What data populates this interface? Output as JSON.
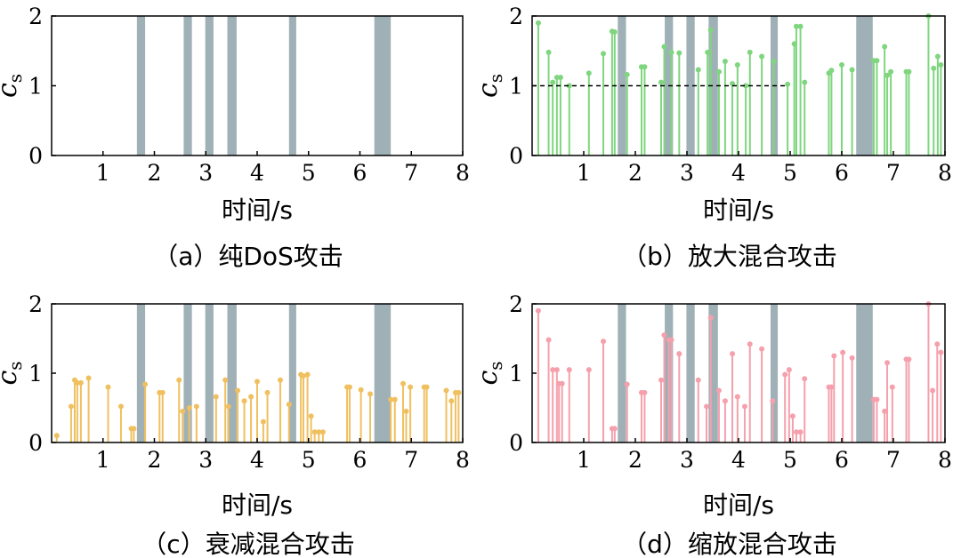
{
  "chart_data": [
    {
      "type": "bar",
      "caption": "（a）纯DoS攻击",
      "xlabel": "时间/s",
      "ylabel": "c",
      "ylabel_sub": "s",
      "xlim": [
        0,
        8
      ],
      "ylim": [
        0,
        2
      ],
      "xticks": [
        1,
        2,
        3,
        4,
        5,
        6,
        7,
        8
      ],
      "yticks": [
        0,
        1,
        2
      ],
      "attack_intervals": [
        [
          1.66,
          1.82
        ],
        [
          2.57,
          2.73
        ],
        [
          2.99,
          3.15
        ],
        [
          3.42,
          3.6
        ],
        [
          4.62,
          4.76
        ],
        [
          6.28,
          6.6
        ]
      ],
      "attack_color": "#9fb1b7",
      "stem_color": null,
      "stems": [],
      "threshold": null
    },
    {
      "type": "bar",
      "caption": "（b）放大混合攻击",
      "xlabel": "时间/s",
      "ylabel": "c",
      "ylabel_sub": "s",
      "xlim": [
        0,
        8
      ],
      "ylim": [
        0,
        2
      ],
      "xticks": [
        1,
        2,
        3,
        4,
        5,
        6,
        7,
        8
      ],
      "yticks": [
        0,
        1,
        2
      ],
      "attack_intervals": [
        [
          1.66,
          1.82
        ],
        [
          2.57,
          2.73
        ],
        [
          2.99,
          3.15
        ],
        [
          3.42,
          3.6
        ],
        [
          4.62,
          4.76
        ],
        [
          6.28,
          6.6
        ]
      ],
      "attack_color": "#9fb1b7",
      "stem_color": "#7fd67f",
      "threshold": {
        "y": 1.0,
        "x_end": 4.93
      },
      "stems": [
        [
          0.12,
          1.9
        ],
        [
          0.32,
          1.48
        ],
        [
          0.4,
          1.05
        ],
        [
          0.48,
          1.12
        ],
        [
          0.55,
          1.12
        ],
        [
          0.72,
          1.0
        ],
        [
          1.1,
          1.18
        ],
        [
          1.38,
          1.46
        ],
        [
          1.55,
          1.78
        ],
        [
          1.6,
          1.77
        ],
        [
          1.84,
          1.16
        ],
        [
          2.12,
          1.27
        ],
        [
          2.18,
          1.27
        ],
        [
          2.5,
          1.05
        ],
        [
          2.56,
          1.56
        ],
        [
          2.7,
          1.48
        ],
        [
          2.85,
          1.47
        ],
        [
          3.22,
          1.23
        ],
        [
          3.4,
          1.48
        ],
        [
          3.46,
          1.8
        ],
        [
          3.62,
          1.2
        ],
        [
          3.74,
          1.35
        ],
        [
          3.88,
          1.03
        ],
        [
          3.98,
          1.3
        ],
        [
          4.14,
          1.0
        ],
        [
          4.22,
          1.48
        ],
        [
          4.45,
          1.42
        ],
        [
          4.68,
          1.35
        ],
        [
          4.95,
          1.02
        ],
        [
          5.08,
          1.6
        ],
        [
          5.12,
          1.85
        ],
        [
          5.2,
          1.85
        ],
        [
          5.28,
          1.05
        ],
        [
          5.75,
          1.18
        ],
        [
          5.8,
          1.22
        ],
        [
          6.0,
          1.3
        ],
        [
          6.2,
          1.23
        ],
        [
          6.62,
          1.36
        ],
        [
          6.68,
          1.36
        ],
        [
          6.83,
          1.56
        ],
        [
          6.88,
          1.15
        ],
        [
          6.95,
          1.2
        ],
        [
          7.25,
          1.2
        ],
        [
          7.3,
          1.2
        ],
        [
          7.68,
          2.0
        ],
        [
          7.78,
          1.25
        ],
        [
          7.86,
          1.42
        ],
        [
          7.92,
          1.3
        ]
      ]
    },
    {
      "type": "bar",
      "caption": "（c）衰减混合攻击",
      "xlabel": "时间/s",
      "ylabel": "c",
      "ylabel_sub": "s",
      "xlim": [
        0,
        8
      ],
      "ylim": [
        0,
        2
      ],
      "xticks": [
        1,
        2,
        3,
        4,
        5,
        6,
        7,
        8
      ],
      "yticks": [
        0,
        1,
        2
      ],
      "attack_intervals": [
        [
          1.66,
          1.82
        ],
        [
          2.57,
          2.73
        ],
        [
          2.99,
          3.15
        ],
        [
          3.42,
          3.6
        ],
        [
          4.62,
          4.76
        ],
        [
          6.28,
          6.6
        ]
      ],
      "attack_color": "#9fb1b7",
      "stem_color": "#f0c060",
      "threshold": null,
      "stems": [
        [
          0.1,
          0.1
        ],
        [
          0.38,
          0.52
        ],
        [
          0.45,
          0.9
        ],
        [
          0.5,
          0.86
        ],
        [
          0.57,
          0.86
        ],
        [
          0.72,
          0.93
        ],
        [
          1.1,
          0.8
        ],
        [
          1.35,
          0.52
        ],
        [
          1.55,
          0.2
        ],
        [
          1.6,
          0.2
        ],
        [
          1.82,
          0.84
        ],
        [
          2.1,
          0.72
        ],
        [
          2.16,
          0.72
        ],
        [
          2.48,
          0.9
        ],
        [
          2.55,
          0.45
        ],
        [
          2.68,
          0.5
        ],
        [
          2.82,
          0.52
        ],
        [
          3.2,
          0.66
        ],
        [
          3.38,
          0.9
        ],
        [
          3.44,
          0.52
        ],
        [
          3.62,
          0.75
        ],
        [
          3.75,
          0.6
        ],
        [
          3.88,
          0.66
        ],
        [
          4.0,
          0.88
        ],
        [
          4.12,
          0.3
        ],
        [
          4.2,
          0.72
        ],
        [
          4.45,
          0.9
        ],
        [
          4.62,
          0.55
        ],
        [
          4.85,
          0.98
        ],
        [
          4.9,
          0.96
        ],
        [
          4.98,
          0.98
        ],
        [
          5.05,
          0.38
        ],
        [
          5.12,
          0.15
        ],
        [
          5.2,
          0.15
        ],
        [
          5.28,
          0.15
        ],
        [
          5.75,
          0.8
        ],
        [
          5.8,
          0.8
        ],
        [
          6.02,
          0.76
        ],
        [
          6.2,
          0.7
        ],
        [
          6.6,
          0.62
        ],
        [
          6.68,
          0.62
        ],
        [
          6.84,
          0.85
        ],
        [
          6.9,
          0.45
        ],
        [
          6.98,
          0.8
        ],
        [
          7.25,
          0.8
        ],
        [
          7.3,
          0.8
        ],
        [
          7.68,
          0.75
        ],
        [
          7.78,
          0.6
        ],
        [
          7.86,
          0.72
        ],
        [
          7.92,
          0.72
        ]
      ]
    },
    {
      "type": "bar",
      "caption": "（d）缩放混合攻击",
      "xlabel": "时间/s",
      "ylabel": "c",
      "ylabel_sub": "s",
      "xlim": [
        0,
        8
      ],
      "ylim": [
        0,
        2
      ],
      "xticks": [
        1,
        2,
        3,
        4,
        5,
        6,
        7,
        8
      ],
      "yticks": [
        0,
        1,
        2
      ],
      "attack_intervals": [
        [
          1.66,
          1.82
        ],
        [
          2.57,
          2.73
        ],
        [
          2.99,
          3.15
        ],
        [
          3.42,
          3.6
        ],
        [
          4.62,
          4.76
        ],
        [
          6.28,
          6.6
        ]
      ],
      "attack_color": "#9fb1b7",
      "stem_color": "#f5a0ac",
      "threshold": null,
      "stems": [
        [
          0.12,
          1.9
        ],
        [
          0.32,
          1.48
        ],
        [
          0.4,
          1.05
        ],
        [
          0.48,
          1.05
        ],
        [
          0.52,
          0.85
        ],
        [
          0.58,
          0.85
        ],
        [
          0.72,
          1.05
        ],
        [
          1.1,
          1.05
        ],
        [
          1.38,
          1.46
        ],
        [
          1.55,
          0.2
        ],
        [
          1.6,
          0.2
        ],
        [
          1.84,
          0.84
        ],
        [
          2.12,
          0.72
        ],
        [
          2.18,
          0.72
        ],
        [
          2.5,
          0.9
        ],
        [
          2.56,
          1.55
        ],
        [
          2.65,
          1.48
        ],
        [
          2.7,
          1.48
        ],
        [
          2.85,
          1.28
        ],
        [
          3.22,
          0.9
        ],
        [
          3.38,
          0.52
        ],
        [
          3.46,
          1.8
        ],
        [
          3.62,
          0.75
        ],
        [
          3.74,
          0.6
        ],
        [
          3.88,
          1.28
        ],
        [
          3.98,
          0.66
        ],
        [
          4.12,
          0.52
        ],
        [
          4.22,
          1.42
        ],
        [
          4.45,
          1.35
        ],
        [
          4.66,
          0.6
        ],
        [
          4.9,
          0.98
        ],
        [
          4.98,
          1.05
        ],
        [
          5.05,
          0.38
        ],
        [
          5.12,
          0.15
        ],
        [
          5.2,
          0.15
        ],
        [
          5.28,
          0.92
        ],
        [
          5.75,
          0.8
        ],
        [
          5.8,
          0.8
        ],
        [
          5.85,
          1.25
        ],
        [
          6.02,
          1.3
        ],
        [
          6.2,
          1.22
        ],
        [
          6.62,
          0.62
        ],
        [
          6.68,
          0.62
        ],
        [
          6.83,
          0.45
        ],
        [
          6.88,
          1.15
        ],
        [
          6.98,
          0.8
        ],
        [
          7.25,
          1.2
        ],
        [
          7.3,
          1.2
        ],
        [
          7.68,
          2.0
        ],
        [
          7.76,
          0.75
        ],
        [
          7.85,
          1.42
        ],
        [
          7.92,
          1.3
        ]
      ]
    }
  ]
}
